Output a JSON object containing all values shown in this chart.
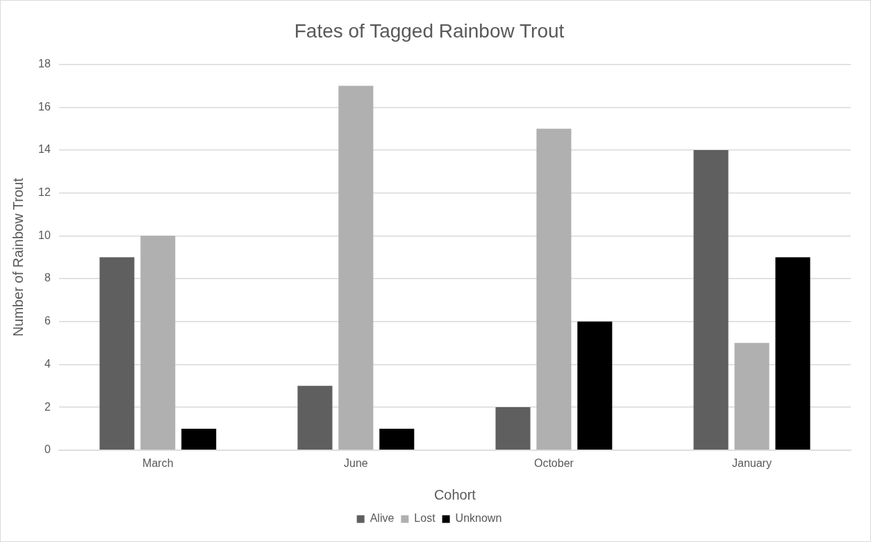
{
  "chart_data": {
    "type": "bar",
    "title": "Fates of Tagged Rainbow Trout",
    "xlabel": "Cohort",
    "ylabel": "Number of Rainbow Trout",
    "categories": [
      "March",
      "June",
      "October",
      "January"
    ],
    "series": [
      {
        "name": "Alive",
        "color": "#5f5f5f",
        "values": [
          9,
          3,
          2,
          14
        ]
      },
      {
        "name": "Lost",
        "color": "#b0b0b0",
        "values": [
          10,
          17,
          15,
          5
        ]
      },
      {
        "name": "Unknown",
        "color": "#000000",
        "values": [
          1,
          1,
          6,
          9
        ]
      }
    ],
    "ylim": [
      0,
      18
    ],
    "yticks": [
      0,
      2,
      4,
      6,
      8,
      10,
      12,
      14,
      16,
      18
    ],
    "grid": "y",
    "legend": "bottom"
  }
}
